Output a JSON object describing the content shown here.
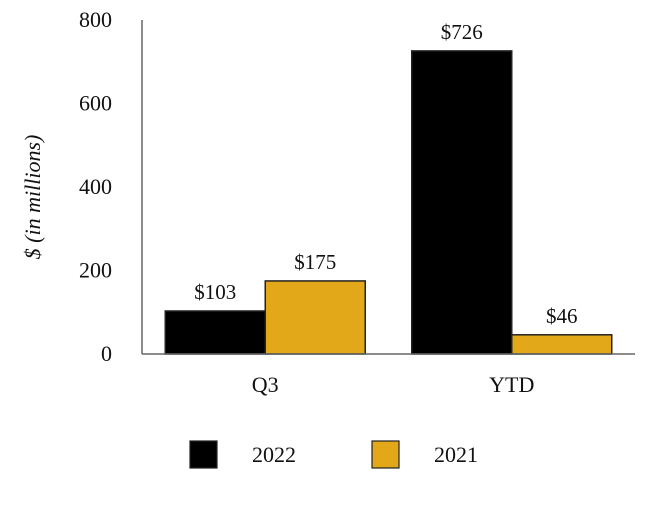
{
  "chart_data": {
    "type": "bar",
    "title": "",
    "xlabel": "",
    "ylabel": "$ (in millions)",
    "ylim": [
      0,
      800
    ],
    "yticks": [
      0,
      200,
      400,
      600,
      800
    ],
    "categories": [
      "Q3",
      "YTD"
    ],
    "series": [
      {
        "name": "2022",
        "color": "#000000",
        "values": [
          103,
          726
        ],
        "labels": [
          "$103",
          "$726"
        ]
      },
      {
        "name": "2021",
        "color": "#E3A81A",
        "values": [
          175,
          46
        ],
        "labels": [
          "$175",
          "$46"
        ]
      }
    ],
    "grid": false,
    "legend_position": "bottom"
  }
}
